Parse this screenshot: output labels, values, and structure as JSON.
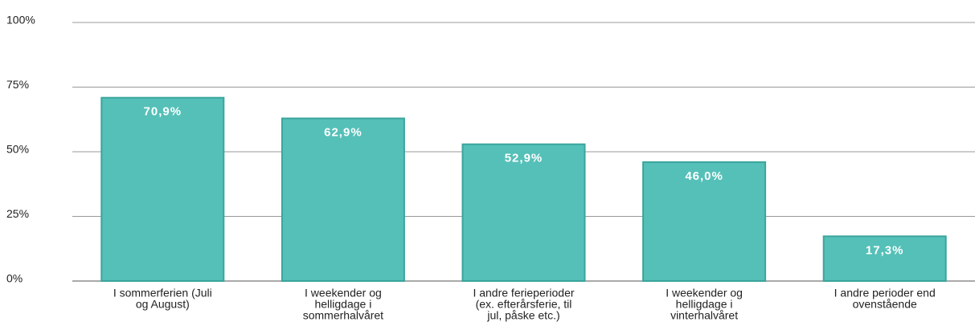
{
  "chart_data": {
    "type": "bar",
    "categories": [
      [
        "I sommerferien (Juli",
        "og August)"
      ],
      [
        "I weekender og",
        "helligdage i",
        "sommerhalvåret"
      ],
      [
        "I andre ferieperioder",
        "(ex. efterårsferie, til",
        "jul, påske etc.)"
      ],
      [
        "I weekender og",
        "helligdage i",
        "vinterhalvåret"
      ],
      [
        "I andre perioder end",
        "ovenstående"
      ]
    ],
    "values": [
      70.9,
      62.9,
      52.9,
      46.0,
      17.3
    ],
    "value_labels": [
      "70,9%",
      "62,9%",
      "52,9%",
      "46,0%",
      "17,3%"
    ],
    "color": "#55c0b8",
    "ylim": [
      0,
      100
    ],
    "yticks": [
      {
        "value": 0,
        "label": "0%"
      },
      {
        "value": 25,
        "label": "25%"
      },
      {
        "value": 50,
        "label": "50%"
      },
      {
        "value": 75,
        "label": "75%"
      },
      {
        "value": 100,
        "label": "100%"
      }
    ],
    "grid": true
  }
}
